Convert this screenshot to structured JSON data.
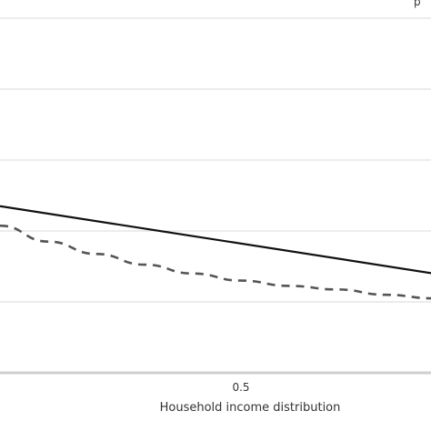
{
  "chart_data": {
    "type": "line",
    "xlabel": "Household income distribution",
    "ylabel": "",
    "xlim": [
      0.0,
      0.9
    ],
    "ylim": [
      0,
      1
    ],
    "x_ticks": [
      0.5
    ],
    "x_tick_labels": [
      "0.5"
    ],
    "grid": true,
    "y_gridlines": [
      0.2,
      0.4,
      0.6,
      0.8,
      1.0
    ],
    "series": [
      {
        "x": [
          0.0,
          0.9
        ],
        "values": [
          0.47,
          0.28
        ],
        "line_style": "solid",
        "color": "#111111"
      },
      {
        "x": [
          0.0,
          0.1,
          0.2,
          0.3,
          0.4,
          0.5,
          0.6,
          0.7,
          0.8,
          0.9
        ],
        "values": [
          0.415,
          0.37,
          0.335,
          0.305,
          0.28,
          0.26,
          0.245,
          0.235,
          0.22,
          0.21
        ],
        "line_style": "dashed",
        "color": "#555555"
      }
    ],
    "cropped_title_fragment": "p"
  }
}
